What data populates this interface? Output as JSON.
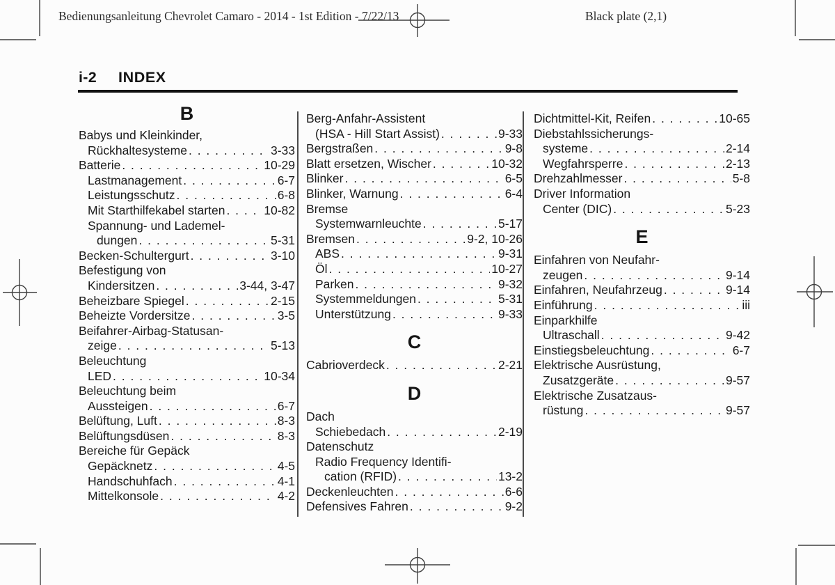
{
  "header": {
    "left": "Bedienungsanleitung Chevrolet Camaro - 2014 - 1st Edition - 7/22/13",
    "right": "Black plate (2,1)"
  },
  "title": {
    "page_label": "i-2",
    "heading": "INDEX"
  },
  "colors": {
    "paper": "#fcfcfc",
    "ink": "#1b1b1b",
    "rule": "#121212",
    "mark_stroke": "#3f3f3f"
  },
  "index": {
    "columns": [
      {
        "blocks": [
          {
            "type": "section",
            "letter": "B"
          },
          {
            "type": "entry",
            "indent": 0,
            "lines": [
              "Babys und Kleinkinder,",
              "Rückhaltesysteme"
            ],
            "page": "3-33"
          },
          {
            "type": "entry",
            "indent": 0,
            "lines": [
              "Batterie"
            ],
            "page": "10-29"
          },
          {
            "type": "entry",
            "indent": 1,
            "lines": [
              "Lastmanagement"
            ],
            "page": "6-7"
          },
          {
            "type": "entry",
            "indent": 1,
            "lines": [
              "Leistungsschutz"
            ],
            "page": "6-8"
          },
          {
            "type": "entry",
            "indent": 1,
            "lines": [
              "Mit Starthilfekabel starten"
            ],
            "page": "10-82"
          },
          {
            "type": "entry",
            "indent": 1,
            "lines": [
              "Spannung- und Lademel-",
              "dungen"
            ],
            "page": "5-31"
          },
          {
            "type": "entry",
            "indent": 0,
            "lines": [
              "Becken-Schultergurt"
            ],
            "page": "3-10"
          },
          {
            "type": "entry",
            "indent": 0,
            "lines": [
              "Befestigung von",
              "Kindersitzen"
            ],
            "page": "3-44, 3-47"
          },
          {
            "type": "entry",
            "indent": 0,
            "lines": [
              "Beheizbare Spiegel"
            ],
            "page": "2-15"
          },
          {
            "type": "entry",
            "indent": 0,
            "lines": [
              "Beheizte Vordersitze"
            ],
            "page": "3-5"
          },
          {
            "type": "entry",
            "indent": 0,
            "lines": [
              "Beifahrer-Airbag-Statusan-",
              "zeige"
            ],
            "page": "5-13"
          },
          {
            "type": "entry",
            "indent": 0,
            "lines": [
              "Beleuchtung"
            ]
          },
          {
            "type": "entry",
            "indent": 1,
            "lines": [
              "LED"
            ],
            "page": "10-34"
          },
          {
            "type": "entry",
            "indent": 0,
            "lines": [
              "Beleuchtung beim",
              "Aussteigen"
            ],
            "page": "6-7"
          },
          {
            "type": "entry",
            "indent": 0,
            "lines": [
              "Belüftung, Luft"
            ],
            "page": "8-3"
          },
          {
            "type": "entry",
            "indent": 0,
            "lines": [
              "Belüftungsdüsen"
            ],
            "page": "8-3"
          },
          {
            "type": "entry",
            "indent": 0,
            "lines": [
              "Bereiche für Gepäck"
            ]
          },
          {
            "type": "entry",
            "indent": 1,
            "lines": [
              "Gepäcknetz"
            ],
            "page": "4-5"
          },
          {
            "type": "entry",
            "indent": 1,
            "lines": [
              "Handschuhfach"
            ],
            "page": "4-1"
          },
          {
            "type": "entry",
            "indent": 1,
            "lines": [
              "Mittelkonsole"
            ],
            "page": "4-2"
          }
        ]
      },
      {
        "blocks": [
          {
            "type": "entry",
            "indent": 0,
            "lines": [
              "Berg-Anfahr-Assistent",
              "(HSA - Hill Start Assist)"
            ],
            "page": "9-33"
          },
          {
            "type": "entry",
            "indent": 0,
            "lines": [
              "Bergstraßen"
            ],
            "page": "9-8"
          },
          {
            "type": "entry",
            "indent": 0,
            "lines": [
              "Blatt ersetzen, Wischer"
            ],
            "page": "10-32"
          },
          {
            "type": "entry",
            "indent": 0,
            "lines": [
              "Blinker"
            ],
            "page": "6-5"
          },
          {
            "type": "entry",
            "indent": 0,
            "lines": [
              "Blinker, Warnung"
            ],
            "page": "6-4"
          },
          {
            "type": "entry",
            "indent": 0,
            "lines": [
              "Bremse"
            ]
          },
          {
            "type": "entry",
            "indent": 1,
            "lines": [
              "Systemwarnleuchte"
            ],
            "page": "5-17"
          },
          {
            "type": "entry",
            "indent": 0,
            "lines": [
              "Bremsen"
            ],
            "page": "9-2, 10-26"
          },
          {
            "type": "entry",
            "indent": 1,
            "lines": [
              "ABS"
            ],
            "page": "9-31"
          },
          {
            "type": "entry",
            "indent": 1,
            "lines": [
              "Öl"
            ],
            "page": "10-27"
          },
          {
            "type": "entry",
            "indent": 1,
            "lines": [
              "Parken"
            ],
            "page": "9-32"
          },
          {
            "type": "entry",
            "indent": 1,
            "lines": [
              "Systemmeldungen"
            ],
            "page": "5-31"
          },
          {
            "type": "entry",
            "indent": 1,
            "lines": [
              "Unterstützung"
            ],
            "page": "9-33"
          },
          {
            "type": "section",
            "letter": "C"
          },
          {
            "type": "entry",
            "indent": 0,
            "lines": [
              "Cabrioverdeck"
            ],
            "page": "2-21"
          },
          {
            "type": "section",
            "letter": "D"
          },
          {
            "type": "entry",
            "indent": 0,
            "lines": [
              "Dach"
            ]
          },
          {
            "type": "entry",
            "indent": 1,
            "lines": [
              "Schiebedach"
            ],
            "page": "2-19"
          },
          {
            "type": "entry",
            "indent": 0,
            "lines": [
              "Datenschutz"
            ]
          },
          {
            "type": "entry",
            "indent": 1,
            "lines": [
              "Radio Frequency Identifi-",
              "cation (RFID)"
            ],
            "page": "13-2"
          },
          {
            "type": "entry",
            "indent": 0,
            "lines": [
              "Deckenleuchten"
            ],
            "page": "6-6"
          },
          {
            "type": "entry",
            "indent": 0,
            "lines": [
              "Defensives Fahren"
            ],
            "page": "9-2"
          }
        ]
      },
      {
        "blocks": [
          {
            "type": "entry",
            "indent": 0,
            "lines": [
              "Dichtmittel-Kit, Reifen"
            ],
            "page": "10-65"
          },
          {
            "type": "entry",
            "indent": 0,
            "lines": [
              "Diebstahlssicherungs-",
              "systeme"
            ],
            "page": "2-14"
          },
          {
            "type": "entry",
            "indent": 1,
            "lines": [
              "Wegfahrsperre"
            ],
            "page": "2-13"
          },
          {
            "type": "entry",
            "indent": 0,
            "lines": [
              "Drehzahlmesser"
            ],
            "page": "5-8"
          },
          {
            "type": "entry",
            "indent": 0,
            "lines": [
              "Driver Information",
              "Center (DIC)"
            ],
            "page": "5-23"
          },
          {
            "type": "section",
            "letter": "E"
          },
          {
            "type": "entry",
            "indent": 0,
            "lines": [
              "Einfahren von Neufahr-",
              "zeugen"
            ],
            "page": "9-14"
          },
          {
            "type": "entry",
            "indent": 0,
            "lines": [
              "Einfahren, Neufahrzeug"
            ],
            "page": "9-14"
          },
          {
            "type": "entry",
            "indent": 0,
            "lines": [
              "Einführung"
            ],
            "page": "iii"
          },
          {
            "type": "entry",
            "indent": 0,
            "lines": [
              "Einparkhilfe"
            ]
          },
          {
            "type": "entry",
            "indent": 1,
            "lines": [
              "Ultraschall"
            ],
            "page": "9-42"
          },
          {
            "type": "entry",
            "indent": 0,
            "lines": [
              "Einstiegsbeleuchtung"
            ],
            "page": "6-7"
          },
          {
            "type": "entry",
            "indent": 0,
            "lines": [
              "Elektrische Ausrüstung,",
              "Zusatzgeräte"
            ],
            "page": "9-57"
          },
          {
            "type": "entry",
            "indent": 0,
            "lines": [
              "Elektrische Zusatzaus-",
              "rüstung"
            ],
            "page": "9-57"
          }
        ]
      }
    ]
  }
}
